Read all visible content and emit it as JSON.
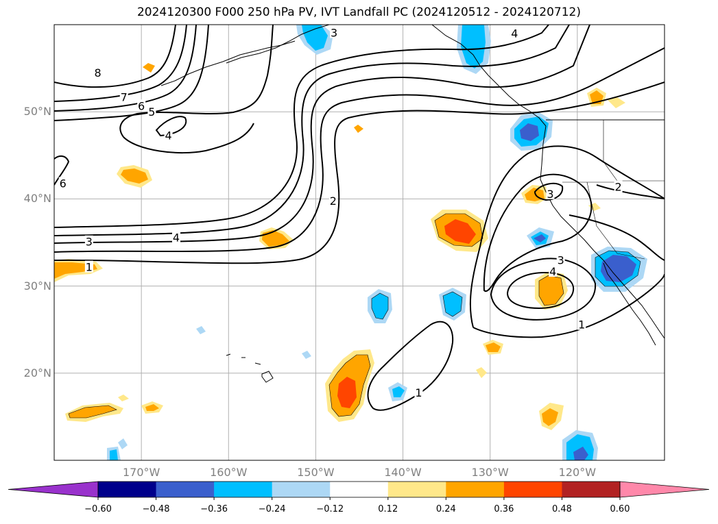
{
  "title": "2024120300 F000 250 hPa PV, IVT Landfall PC (2024120512 - 2024120712)",
  "map": {
    "extent_lon": [
      -180,
      -110
    ],
    "extent_lat": [
      10,
      60
    ],
    "lat_labels": [
      {
        "lat": 50,
        "text": "50°N"
      },
      {
        "lat": 40,
        "text": "40°N"
      },
      {
        "lat": 30,
        "text": "30°N"
      },
      {
        "lat": 20,
        "text": "20°N"
      }
    ],
    "lon_labels": [
      {
        "lon": -170,
        "text": "170°W"
      },
      {
        "lon": -160,
        "text": "160°W"
      },
      {
        "lon": -150,
        "text": "150°W"
      },
      {
        "lon": -140,
        "text": "140°W"
      },
      {
        "lon": -130,
        "text": "130°W"
      },
      {
        "lon": -120,
        "text": "120°W"
      }
    ],
    "grid": true,
    "contour_labels": [
      {
        "text": "8",
        "lon": -175.0,
        "lat": 54.5
      },
      {
        "text": "7",
        "lon": -172.0,
        "lat": 51.7
      },
      {
        "text": "6",
        "lon": -170.0,
        "lat": 50.7
      },
      {
        "text": "5",
        "lon": -168.8,
        "lat": 50.0
      },
      {
        "text": "4",
        "lon": -166.9,
        "lat": 47.3
      },
      {
        "text": "6",
        "lon": -179.0,
        "lat": 41.8
      },
      {
        "text": "3",
        "lon": -176.0,
        "lat": 35.1
      },
      {
        "text": "4",
        "lon": -166.0,
        "lat": 35.6
      },
      {
        "text": "1",
        "lon": -176.0,
        "lat": 32.2
      },
      {
        "text": "2",
        "lon": -148.0,
        "lat": 39.8
      },
      {
        "text": "3",
        "lon": -147.9,
        "lat": 59.1
      },
      {
        "text": "4",
        "lon": -127.2,
        "lat": 59.0
      },
      {
        "text": "2",
        "lon": -115.3,
        "lat": 41.4
      },
      {
        "text": "3",
        "lon": -123.1,
        "lat": 40.6
      },
      {
        "text": "3",
        "lon": -121.9,
        "lat": 33.0
      },
      {
        "text": "4",
        "lon": -122.8,
        "lat": 31.7
      },
      {
        "text": "1",
        "lon": -119.5,
        "lat": 25.6
      },
      {
        "text": "1",
        "lon": -138.2,
        "lat": 17.8
      }
    ]
  },
  "colorbar": {
    "colors": [
      "#9932CC",
      "#00008B",
      "#3A5FCD",
      "#00BFFF",
      "#ADD8F5",
      "#FFFFFF",
      "#FFE88A",
      "#FFA500",
      "#FF4500",
      "#B22222",
      "#FF88AA"
    ],
    "labels": [
      "−0.60",
      "−0.48",
      "−0.36",
      "−0.24",
      "−0.12",
      "0.12",
      "0.24",
      "0.36",
      "0.48",
      "0.60"
    ]
  }
}
